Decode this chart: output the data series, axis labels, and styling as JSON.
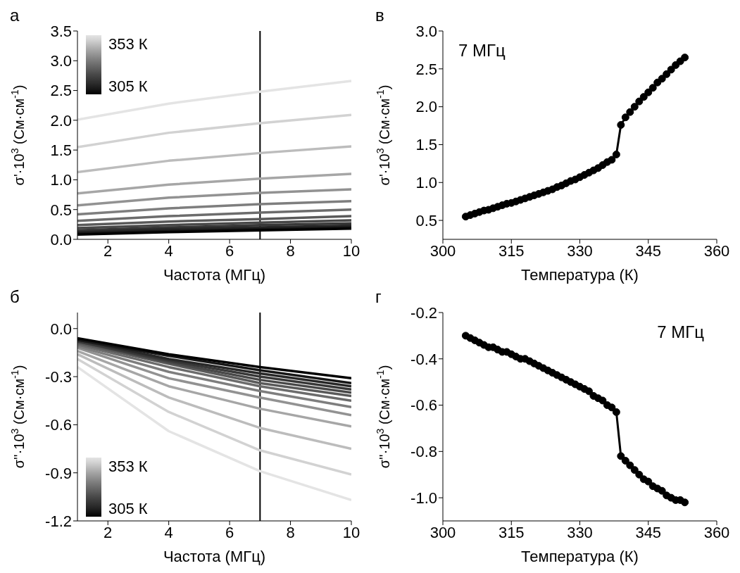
{
  "chart_data": [
    {
      "type": "line",
      "title": "а",
      "xlabel": "Частота (МГц)",
      "ylabel": "σ'·10$^{3}$  (См·см$^{-1}$)",
      "xlim": [
        1,
        10
      ],
      "xticks": [
        2,
        4,
        6,
        8,
        10
      ],
      "ylim": [
        0,
        3.5
      ],
      "yticks": [
        {
          "value": 0,
          "label": "0.0"
        },
        0.5,
        {
          "value": 1,
          "label": "1.0"
        },
        1.5,
        {
          "value": 2,
          "label": "2.0"
        },
        2.5,
        {
          "value": 3,
          "label": "3.0"
        },
        3.5
      ],
      "marker": "none",
      "annotations": [
        "353 К",
        "305 К"
      ],
      "ref_lines": [
        {
          "axis": "x",
          "value": 7,
          "color": "#000000"
        }
      ],
      "x": [
        1,
        4,
        7,
        10
      ],
      "series": [
        {
          "color": "#e4e4e4",
          "values": [
            2.01,
            2.28,
            2.48,
            2.66
          ]
        },
        {
          "color": "#d2d2d2",
          "values": [
            1.55,
            1.79,
            1.95,
            2.09
          ]
        },
        {
          "color": "#bcbcbc",
          "values": [
            1.13,
            1.32,
            1.45,
            1.56
          ]
        },
        {
          "color": "#a6a6a6",
          "values": [
            0.77,
            0.92,
            1.02,
            1.1
          ]
        },
        {
          "color": "#929292",
          "values": [
            0.57,
            0.7,
            0.78,
            0.84
          ]
        },
        {
          "color": "#7e7e7e",
          "values": [
            0.42,
            0.52,
            0.59,
            0.64
          ]
        },
        {
          "color": "#6c6c6c",
          "values": [
            0.31,
            0.39,
            0.45,
            0.5
          ]
        },
        {
          "color": "#5a5a5a",
          "values": [
            0.24,
            0.3,
            0.34,
            0.39
          ]
        },
        {
          "color": "#484848",
          "values": [
            0.19,
            0.24,
            0.28,
            0.32
          ]
        },
        {
          "color": "#383838",
          "values": [
            0.15,
            0.2,
            0.24,
            0.27
          ]
        },
        {
          "color": "#282828",
          "values": [
            0.12,
            0.17,
            0.2,
            0.23
          ]
        },
        {
          "color": "#161616",
          "values": [
            0.1,
            0.14,
            0.17,
            0.2
          ]
        },
        {
          "color": "#000000",
          "values": [
            0.08,
            0.12,
            0.15,
            0.18
          ]
        }
      ]
    },
    {
      "type": "line",
      "title": "в",
      "xlabel": "Температура (К)",
      "ylabel": "σ'·10$^{3}$  (См·см$^{-1}$)",
      "xlim": [
        300,
        360
      ],
      "xticks": [
        300,
        315,
        330,
        345,
        360
      ],
      "ylim": [
        0.25,
        3
      ],
      "yticks": [
        0.5,
        {
          "value": 1,
          "label": "1.0"
        },
        1.5,
        {
          "value": 2,
          "label": "2.0"
        },
        2.5,
        {
          "value": 3,
          "label": "3.0"
        }
      ],
      "marker": "circle",
      "annotations": [
        "7 МГц"
      ],
      "x": [
        305,
        306,
        307,
        308,
        309,
        310,
        311,
        312,
        313,
        314,
        315,
        316,
        317,
        318,
        319,
        320,
        321,
        322,
        323,
        324,
        325,
        326,
        327,
        328,
        329,
        330,
        331,
        332,
        333,
        334,
        335,
        336,
        337,
        338,
        339,
        340,
        341,
        342,
        343,
        344,
        345,
        346,
        347,
        348,
        349,
        350,
        351,
        352,
        353
      ],
      "series": [
        {
          "color": "#000000",
          "values": [
            0.55,
            0.57,
            0.59,
            0.61,
            0.63,
            0.64,
            0.66,
            0.68,
            0.7,
            0.72,
            0.73,
            0.75,
            0.77,
            0.79,
            0.81,
            0.83,
            0.85,
            0.87,
            0.89,
            0.91,
            0.94,
            0.96,
            0.99,
            1.02,
            1.04,
            1.07,
            1.1,
            1.13,
            1.16,
            1.19,
            1.23,
            1.27,
            1.3,
            1.37,
            1.76,
            1.86,
            1.93,
            2.0,
            2.07,
            2.13,
            2.19,
            2.25,
            2.32,
            2.37,
            2.43,
            2.49,
            2.55,
            2.6,
            2.65
          ]
        }
      ]
    },
    {
      "type": "line",
      "title": "б",
      "xlabel": "Частота (МГц)",
      "ylabel": "σ''·10$^{3}$ (См·см$^{-1}$)",
      "xlim": [
        1,
        10
      ],
      "xticks": [
        2,
        4,
        6,
        8,
        10
      ],
      "ylim": [
        -1.2,
        0.1
      ],
      "yticks": [
        -1.2,
        -0.9,
        -0.6,
        -0.3,
        {
          "value": 0,
          "label": "0.0"
        }
      ],
      "marker": "none",
      "annotations": [
        "353 К",
        "305 К"
      ],
      "ref_lines": [
        {
          "axis": "x",
          "value": 7,
          "color": "#000000"
        }
      ],
      "x": [
        1,
        4,
        7,
        10
      ],
      "series": [
        {
          "color": "#e4e4e4",
          "values": [
            -0.24,
            -0.64,
            -0.89,
            -1.07
          ]
        },
        {
          "color": "#d2d2d2",
          "values": [
            -0.19,
            -0.52,
            -0.76,
            -0.91
          ]
        },
        {
          "color": "#bcbcbc",
          "values": [
            -0.16,
            -0.43,
            -0.62,
            -0.75
          ]
        },
        {
          "color": "#a6a6a6",
          "values": [
            -0.14,
            -0.36,
            -0.5,
            -0.61
          ]
        },
        {
          "color": "#929292",
          "values": [
            -0.12,
            -0.31,
            -0.43,
            -0.54
          ]
        },
        {
          "color": "#7e7e7e",
          "values": [
            -0.11,
            -0.27,
            -0.39,
            -0.49
          ]
        },
        {
          "color": "#6c6c6c",
          "values": [
            -0.1,
            -0.24,
            -0.36,
            -0.45
          ]
        },
        {
          "color": "#5a5a5a",
          "values": [
            -0.09,
            -0.22,
            -0.34,
            -0.42
          ]
        },
        {
          "color": "#484848",
          "values": [
            -0.08,
            -0.21,
            -0.32,
            -0.4
          ]
        },
        {
          "color": "#383838",
          "values": [
            -0.08,
            -0.2,
            -0.3,
            -0.38
          ]
        },
        {
          "color": "#282828",
          "values": [
            -0.07,
            -0.19,
            -0.28,
            -0.36
          ]
        },
        {
          "color": "#161616",
          "values": [
            -0.07,
            -0.17,
            -0.26,
            -0.34
          ]
        },
        {
          "color": "#000000",
          "values": [
            -0.06,
            -0.16,
            -0.24,
            -0.31
          ]
        }
      ]
    },
    {
      "type": "line",
      "title": "г",
      "xlabel": "Температура (К)",
      "ylabel": "σ''·10$^{3}$  (См·см$^{-1}$)",
      "xlim": [
        300,
        360
      ],
      "xticks": [
        300,
        315,
        330,
        345,
        360
      ],
      "ylim": [
        -1.1,
        -0.2
      ],
      "yticks": [
        {
          "value": -1,
          "label": "-1.0"
        },
        -0.8,
        -0.6,
        -0.4,
        -0.2
      ],
      "marker": "circle",
      "annotations": [
        "7 МГц"
      ],
      "x": [
        305,
        306,
        307,
        308,
        309,
        310,
        311,
        312,
        313,
        314,
        315,
        316,
        317,
        318,
        319,
        320,
        321,
        322,
        323,
        324,
        325,
        326,
        327,
        328,
        329,
        330,
        331,
        332,
        333,
        334,
        335,
        336,
        337,
        338,
        339,
        340,
        341,
        342,
        343,
        344,
        345,
        346,
        347,
        348,
        349,
        350,
        351,
        352,
        353
      ],
      "series": [
        {
          "color": "#000000",
          "values": [
            -0.3,
            -0.31,
            -0.32,
            -0.33,
            -0.34,
            -0.35,
            -0.35,
            -0.36,
            -0.37,
            -0.37,
            -0.38,
            -0.39,
            -0.4,
            -0.4,
            -0.41,
            -0.42,
            -0.43,
            -0.44,
            -0.45,
            -0.46,
            -0.47,
            -0.48,
            -0.49,
            -0.5,
            -0.51,
            -0.52,
            -0.53,
            -0.54,
            -0.56,
            -0.57,
            -0.58,
            -0.6,
            -0.61,
            -0.63,
            -0.82,
            -0.84,
            -0.86,
            -0.88,
            -0.9,
            -0.92,
            -0.93,
            -0.95,
            -0.96,
            -0.97,
            -0.99,
            -1.0,
            -1.01,
            -1.01,
            -1.02
          ]
        }
      ]
    }
  ]
}
